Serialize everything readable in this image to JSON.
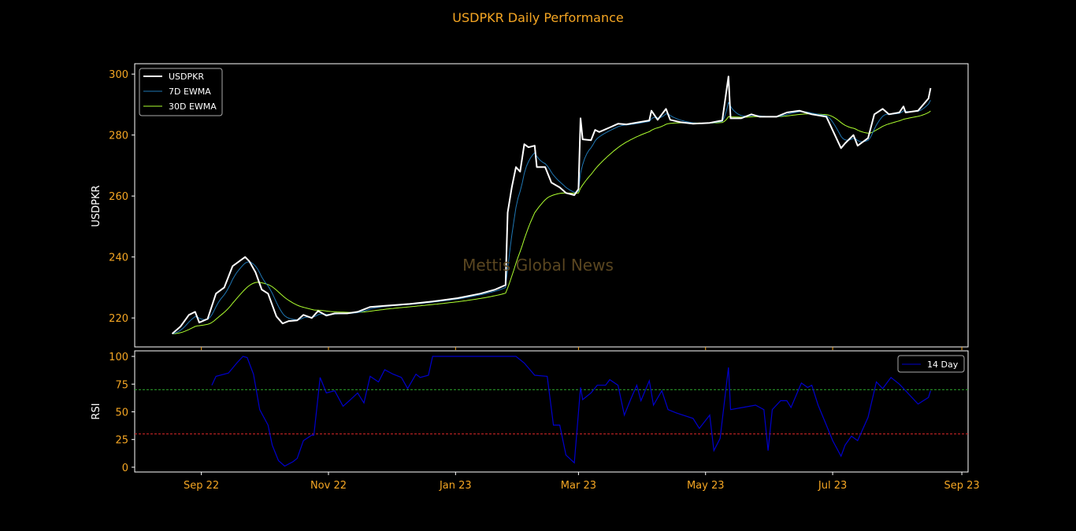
{
  "chart_data": [
    {
      "type": "line",
      "title": "USDPKR Daily Performance",
      "ylabel": "USDPKR",
      "xlabel": "",
      "watermark": "Mettis Global News",
      "x_units": "days since 2022-09-01",
      "xlim": [
        -32,
        368
      ],
      "ylim": [
        210.5,
        303.4
      ],
      "yticks": [
        220,
        240,
        260,
        280,
        300
      ],
      "xticks": [
        {
          "x": 0,
          "label": "Sep 22"
        },
        {
          "x": 61,
          "label": "Nov 22"
        },
        {
          "x": 122,
          "label": "Jan 23"
        },
        {
          "x": 181,
          "label": "Mar 23"
        },
        {
          "x": 242,
          "label": "May 23"
        },
        {
          "x": 303,
          "label": "Jul 23"
        },
        {
          "x": 365,
          "label": "Sep 23"
        }
      ],
      "legend_position": "top-left",
      "series": [
        {
          "name": "USDPKR",
          "color": "#ffffff",
          "kind": "price",
          "x": [
            -14,
            -10,
            -6,
            -3,
            -1,
            3,
            7,
            11,
            15,
            19,
            21,
            23,
            26,
            29,
            32,
            36,
            39,
            42,
            46,
            49,
            53,
            56,
            60,
            64,
            70,
            75,
            81,
            88,
            100,
            111,
            123,
            134,
            141,
            146,
            147,
            149,
            151,
            153,
            155,
            157,
            160,
            161,
            165,
            168,
            172,
            175,
            179,
            181,
            182,
            183,
            187,
            189,
            191,
            196,
            200,
            204,
            210,
            215,
            216,
            219,
            223,
            225,
            230,
            236,
            244,
            250,
            253,
            254,
            259,
            264,
            268,
            276,
            281,
            287,
            293,
            300,
            307,
            309,
            313,
            315,
            320,
            323,
            327,
            330,
            335,
            337,
            338,
            344,
            349,
            350
          ],
          "y": [
            214.8,
            217.2,
            221,
            222,
            218.5,
            219.7,
            228,
            230,
            237,
            239,
            240,
            238.6,
            235,
            229.3,
            228,
            220.5,
            218.2,
            219,
            219.2,
            221,
            220,
            222.3,
            220.8,
            221.5,
            221.5,
            222,
            223.6,
            224,
            224.6,
            225.4,
            226.5,
            228,
            229.3,
            230.8,
            254.6,
            262.8,
            269.5,
            268,
            277,
            276,
            276.5,
            269.5,
            269.5,
            264.4,
            262.8,
            261,
            260.3,
            262.3,
            285.5,
            278.6,
            278.3,
            281.7,
            281,
            282.5,
            283.7,
            283.5,
            284.2,
            284.8,
            288,
            285,
            288.6,
            285,
            284.2,
            283.7,
            284,
            284.8,
            299.2,
            285.5,
            285.5,
            286.8,
            286,
            286,
            287.4,
            288,
            286.8,
            286,
            275.7,
            277.3,
            280,
            276.5,
            279,
            286.8,
            288.6,
            286.8,
            287.4,
            289.4,
            287.4,
            288,
            292,
            295.4
          ]
        },
        {
          "name": "7D EWMA",
          "color": "#1f77b4",
          "kind": "ewma",
          "span": 7
        },
        {
          "name": "30D EWMA",
          "color": "#adff2f",
          "kind": "ewma",
          "span": 30
        }
      ]
    },
    {
      "type": "line",
      "ylabel": "RSI",
      "ylim": [
        -4.3,
        105
      ],
      "yticks": [
        0,
        25,
        50,
        75,
        100
      ],
      "legend_position": "top-right",
      "reference_lines": [
        {
          "y": 70,
          "color": "#2ca02c"
        },
        {
          "y": 30,
          "color": "#d62728"
        }
      ],
      "series": [
        {
          "name": "14 Day",
          "color": "#0000cd",
          "x": [
            5,
            7,
            13,
            17,
            20,
            22,
            25,
            28,
            32,
            34,
            37,
            40,
            44,
            46,
            49,
            53,
            54,
            57,
            60,
            64,
            68,
            71,
            75,
            78,
            81,
            85,
            88,
            92,
            96,
            99,
            103,
            105,
            109,
            111,
            151,
            155,
            160,
            166,
            169,
            172,
            175,
            179,
            182,
            183,
            187,
            190,
            194,
            196,
            200,
            203,
            206,
            209,
            211,
            215,
            217,
            221,
            224,
            228,
            236,
            239,
            244,
            246,
            249,
            253,
            254,
            260,
            266,
            270,
            272,
            274,
            278,
            281,
            283,
            288,
            291,
            293,
            296,
            300,
            303,
            307,
            309,
            312,
            315,
            320,
            324,
            327,
            331,
            335,
            339,
            344,
            349,
            350
          ],
          "y": [
            74,
            82,
            85,
            94,
            100,
            99,
            84,
            52,
            38,
            20,
            6,
            1,
            5,
            8,
            24,
            29,
            29,
            81,
            67,
            69,
            55,
            60,
            67,
            58,
            82,
            77,
            88,
            84,
            81,
            71,
            84,
            81,
            83,
            100,
            100,
            94,
            83,
            82,
            38,
            38,
            11,
            4,
            72,
            61,
            67,
            74,
            74,
            79,
            74,
            47,
            61,
            74,
            60,
            78,
            56,
            69,
            52,
            49,
            44,
            35,
            47,
            15,
            26,
            90,
            52,
            54,
            56,
            52,
            15,
            52,
            60,
            60,
            54,
            76,
            72,
            74,
            56,
            38,
            24,
            10,
            20,
            28,
            24,
            45,
            77,
            71,
            81,
            75,
            67,
            57,
            63,
            69
          ]
        }
      ]
    }
  ]
}
